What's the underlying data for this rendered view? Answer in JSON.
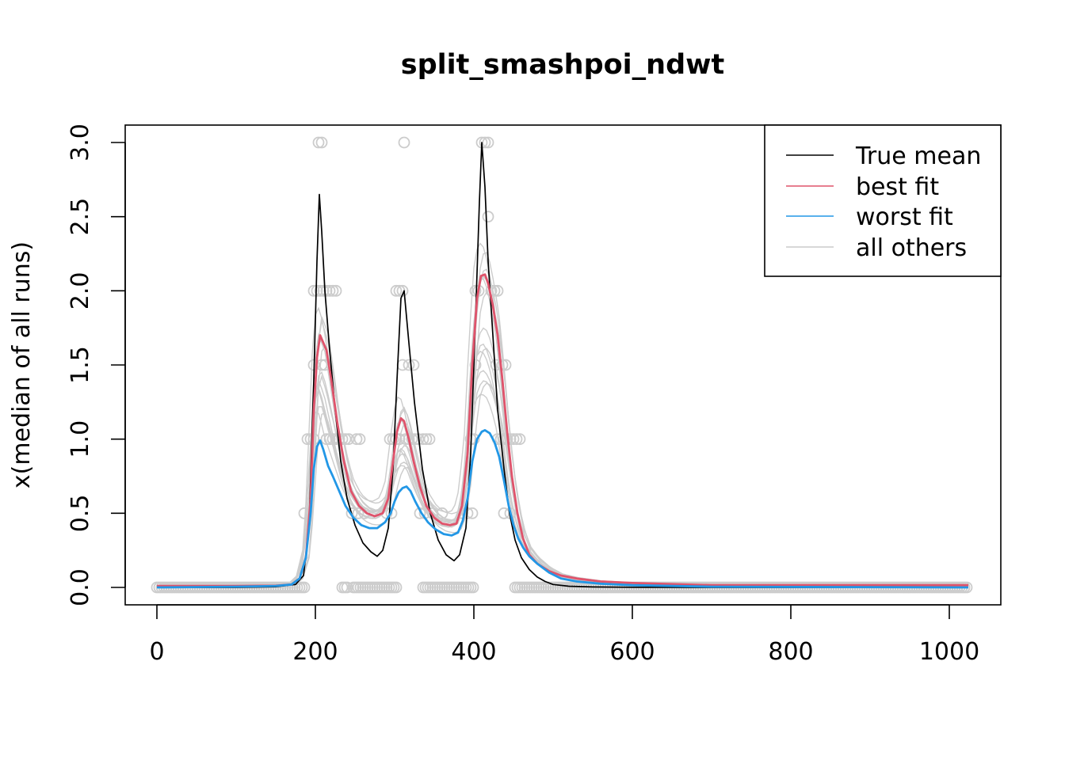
{
  "chart_data": {
    "type": "line",
    "title": "split_smashpoi_ndwt",
    "xlabel": "",
    "ylabel": "x(median of all runs)",
    "xlim": [
      -20,
      1044
    ],
    "ylim": [
      -0.12,
      3.12
    ],
    "x_ticks": [
      0,
      200,
      400,
      600,
      800,
      1000
    ],
    "y_ticks": [
      0.0,
      0.5,
      1.0,
      1.5,
      2.0,
      2.5,
      3.0
    ],
    "x_tick_labels": [
      "0",
      "200",
      "400",
      "600",
      "800",
      "1000"
    ],
    "y_tick_labels": [
      "0.0",
      "0.5",
      "1.0",
      "1.5",
      "2.0",
      "2.5",
      "3.0"
    ],
    "grid": false,
    "legend": {
      "position": "top-right",
      "entries": [
        {
          "label": "True mean",
          "color": "#000000"
        },
        {
          "label": "best fit",
          "color": "#DF536B"
        },
        {
          "label": "worst fit",
          "color": "#2297E6"
        },
        {
          "label": "all others",
          "color": "#CCCCCC"
        }
      ]
    },
    "series": [
      {
        "name": "True mean",
        "color": "#000000",
        "x": [
          0,
          100,
          150,
          175,
          185,
          192,
          198,
          202,
          205,
          208,
          212,
          218,
          225,
          232,
          240,
          250,
          260,
          270,
          278,
          285,
          292,
          298,
          303,
          308,
          312,
          318,
          325,
          335,
          345,
          355,
          365,
          375,
          382,
          390,
          396,
          402,
          407,
          410,
          414,
          418,
          424,
          430,
          438,
          445,
          452,
          460,
          470,
          480,
          490,
          500,
          520,
          550,
          600,
          700,
          1024
        ],
        "values": [
          0.0,
          0.0,
          0.005,
          0.02,
          0.08,
          0.4,
          1.4,
          2.2,
          2.65,
          2.4,
          2.0,
          1.6,
          1.2,
          0.85,
          0.6,
          0.42,
          0.3,
          0.24,
          0.21,
          0.25,
          0.4,
          0.8,
          1.4,
          1.95,
          2.0,
          1.65,
          1.25,
          0.8,
          0.5,
          0.32,
          0.22,
          0.18,
          0.22,
          0.4,
          0.9,
          1.8,
          2.6,
          3.0,
          2.7,
          2.2,
          1.7,
          1.2,
          0.8,
          0.5,
          0.32,
          0.2,
          0.12,
          0.07,
          0.04,
          0.02,
          0.008,
          0.003,
          0.001,
          0.0,
          0.0
        ]
      },
      {
        "name": "best fit",
        "color": "#DF536B",
        "x": [
          0,
          100,
          150,
          170,
          180,
          188,
          194,
          198,
          202,
          206,
          210,
          214,
          220,
          228,
          236,
          245,
          255,
          265,
          275,
          285,
          292,
          298,
          303,
          308,
          312,
          318,
          324,
          332,
          340,
          350,
          360,
          370,
          378,
          385,
          392,
          398,
          404,
          409,
          414,
          418,
          424,
          430,
          436,
          442,
          448,
          455,
          462,
          470,
          480,
          495,
          510,
          530,
          560,
          600,
          700,
          1024
        ],
        "values": [
          0.01,
          0.01,
          0.012,
          0.02,
          0.06,
          0.2,
          0.6,
          1.2,
          1.55,
          1.7,
          1.65,
          1.6,
          1.4,
          1.1,
          0.85,
          0.65,
          0.55,
          0.5,
          0.48,
          0.5,
          0.6,
          0.85,
          1.05,
          1.14,
          1.12,
          1.0,
          0.85,
          0.68,
          0.55,
          0.47,
          0.43,
          0.42,
          0.43,
          0.55,
          0.9,
          1.5,
          1.95,
          2.1,
          2.11,
          2.05,
          1.9,
          1.7,
          1.4,
          1.05,
          0.75,
          0.5,
          0.33,
          0.22,
          0.16,
          0.11,
          0.08,
          0.06,
          0.04,
          0.03,
          0.015,
          0.015
        ]
      },
      {
        "name": "worst fit",
        "color": "#2297E6",
        "x": [
          0,
          100,
          150,
          170,
          180,
          188,
          194,
          198,
          202,
          206,
          210,
          216,
          222,
          230,
          238,
          248,
          258,
          268,
          278,
          288,
          295,
          300,
          305,
          310,
          315,
          320,
          326,
          334,
          342,
          352,
          362,
          372,
          380,
          386,
          392,
          398,
          404,
          410,
          414,
          420,
          426,
          432,
          438,
          444,
          450,
          456,
          462,
          470,
          480,
          495,
          510,
          530,
          560,
          600,
          700,
          1024
        ],
        "values": [
          0.0,
          0.005,
          0.01,
          0.02,
          0.06,
          0.2,
          0.5,
          0.8,
          0.95,
          0.99,
          0.93,
          0.82,
          0.75,
          0.65,
          0.55,
          0.47,
          0.42,
          0.4,
          0.4,
          0.44,
          0.5,
          0.58,
          0.64,
          0.67,
          0.68,
          0.65,
          0.58,
          0.5,
          0.44,
          0.39,
          0.36,
          0.35,
          0.37,
          0.45,
          0.6,
          0.85,
          1.0,
          1.05,
          1.06,
          1.04,
          0.98,
          0.88,
          0.72,
          0.55,
          0.42,
          0.33,
          0.27,
          0.21,
          0.16,
          0.1,
          0.06,
          0.04,
          0.025,
          0.015,
          0.005,
          0.0
        ]
      }
    ],
    "background_runs": {
      "name": "all others",
      "color": "#CCCCCC",
      "count": 14,
      "note": "gray curves scattered around the fits"
    },
    "observations": {
      "type": "scatter",
      "color": "#CCCCCC",
      "y_levels": [
        0,
        0.5,
        1.0,
        1.5,
        2.0,
        2.5,
        3.0
      ],
      "points": [
        {
          "x": 204,
          "y": 3.0
        },
        {
          "x": 208,
          "y": 3.0
        },
        {
          "x": 312,
          "y": 3.0
        },
        {
          "x": 410,
          "y": 3.0
        },
        {
          "x": 414,
          "y": 3.0
        },
        {
          "x": 418,
          "y": 3.0
        },
        {
          "x": 418,
          "y": 2.5
        },
        {
          "x": 198,
          "y": 2.0
        },
        {
          "x": 202,
          "y": 2.0
        },
        {
          "x": 206,
          "y": 2.0
        },
        {
          "x": 210,
          "y": 2.0
        },
        {
          "x": 214,
          "y": 2.0
        },
        {
          "x": 218,
          "y": 2.0
        },
        {
          "x": 222,
          "y": 2.0
        },
        {
          "x": 226,
          "y": 2.0
        },
        {
          "x": 302,
          "y": 2.0
        },
        {
          "x": 306,
          "y": 2.0
        },
        {
          "x": 310,
          "y": 2.0
        },
        {
          "x": 402,
          "y": 2.0
        },
        {
          "x": 406,
          "y": 2.0
        },
        {
          "x": 422,
          "y": 2.0
        },
        {
          "x": 426,
          "y": 2.0
        },
        {
          "x": 430,
          "y": 2.0
        },
        {
          "x": 198,
          "y": 1.5
        },
        {
          "x": 208,
          "y": 1.5
        },
        {
          "x": 212,
          "y": 1.5
        },
        {
          "x": 310,
          "y": 1.5
        },
        {
          "x": 318,
          "y": 1.5
        },
        {
          "x": 324,
          "y": 1.5
        },
        {
          "x": 402,
          "y": 1.5
        },
        {
          "x": 428,
          "y": 1.5
        },
        {
          "x": 436,
          "y": 1.5
        },
        {
          "x": 440,
          "y": 1.5
        },
        {
          "x": 190,
          "y": 1.0
        },
        {
          "x": 194,
          "y": 1.0
        },
        {
          "x": 198,
          "y": 1.0
        },
        {
          "x": 214,
          "y": 1.0
        },
        {
          "x": 218,
          "y": 1.0
        },
        {
          "x": 222,
          "y": 1.0
        },
        {
          "x": 226,
          "y": 1.0
        },
        {
          "x": 230,
          "y": 1.0
        },
        {
          "x": 234,
          "y": 1.0
        },
        {
          "x": 238,
          "y": 1.0
        },
        {
          "x": 242,
          "y": 1.0
        },
        {
          "x": 252,
          "y": 1.0
        },
        {
          "x": 256,
          "y": 1.0
        },
        {
          "x": 294,
          "y": 1.0
        },
        {
          "x": 298,
          "y": 1.0
        },
        {
          "x": 302,
          "y": 1.0
        },
        {
          "x": 306,
          "y": 1.0
        },
        {
          "x": 314,
          "y": 1.0
        },
        {
          "x": 318,
          "y": 1.0
        },
        {
          "x": 322,
          "y": 1.0
        },
        {
          "x": 326,
          "y": 1.0
        },
        {
          "x": 330,
          "y": 1.0
        },
        {
          "x": 336,
          "y": 1.0
        },
        {
          "x": 340,
          "y": 1.0
        },
        {
          "x": 344,
          "y": 1.0
        },
        {
          "x": 396,
          "y": 1.0
        },
        {
          "x": 400,
          "y": 1.0
        },
        {
          "x": 430,
          "y": 1.0
        },
        {
          "x": 434,
          "y": 1.0
        },
        {
          "x": 438,
          "y": 1.0
        },
        {
          "x": 442,
          "y": 1.0
        },
        {
          "x": 446,
          "y": 1.0
        },
        {
          "x": 450,
          "y": 1.0
        },
        {
          "x": 454,
          "y": 1.0
        },
        {
          "x": 458,
          "y": 1.0
        },
        {
          "x": 186,
          "y": 0.5
        },
        {
          "x": 246,
          "y": 0.5
        },
        {
          "x": 254,
          "y": 0.5
        },
        {
          "x": 262,
          "y": 0.5
        },
        {
          "x": 290,
          "y": 0.5
        },
        {
          "x": 296,
          "y": 0.5
        },
        {
          "x": 332,
          "y": 0.5
        },
        {
          "x": 338,
          "y": 0.5
        },
        {
          "x": 348,
          "y": 0.5
        },
        {
          "x": 360,
          "y": 0.5
        },
        {
          "x": 386,
          "y": 0.5
        },
        {
          "x": 392,
          "y": 0.5
        },
        {
          "x": 398,
          "y": 0.5
        },
        {
          "x": 438,
          "y": 0.5
        },
        {
          "x": 446,
          "y": 0.5
        }
      ],
      "zero_runs": [
        {
          "from": 0,
          "to": 186
        },
        {
          "from": 234,
          "to": 240
        },
        {
          "from": 248,
          "to": 304
        },
        {
          "from": 336,
          "to": 400
        },
        {
          "from": 452,
          "to": 1024
        }
      ]
    }
  }
}
